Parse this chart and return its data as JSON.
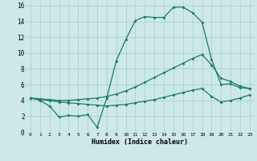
{
  "xlabel": "Humidex (Indice chaleur)",
  "background_color": "#cce8e8",
  "grid_color": "#aacccc",
  "line_color": "#1a7a6a",
  "xlim": [
    -0.5,
    23.5
  ],
  "ylim": [
    0,
    16.5
  ],
  "xticks": [
    0,
    1,
    2,
    3,
    4,
    5,
    6,
    7,
    8,
    9,
    10,
    11,
    12,
    13,
    14,
    15,
    16,
    17,
    18,
    19,
    20,
    21,
    22,
    23
  ],
  "yticks": [
    0,
    2,
    4,
    6,
    8,
    10,
    12,
    14,
    16
  ],
  "line1_x": [
    0,
    1,
    2,
    3,
    4,
    5,
    6,
    7,
    8,
    9,
    10,
    11,
    12,
    13,
    14,
    15,
    16,
    17,
    18,
    19,
    20,
    21,
    22,
    23
  ],
  "line1_y": [
    4.3,
    4.0,
    3.3,
    1.9,
    2.1,
    2.0,
    2.2,
    0.6,
    4.3,
    9.0,
    11.7,
    14.1,
    14.6,
    14.5,
    14.5,
    15.8,
    15.8,
    15.1,
    13.9,
    9.2,
    6.0,
    6.1,
    5.6,
    5.5
  ],
  "line2_x": [
    0,
    1,
    2,
    3,
    4,
    5,
    6,
    7,
    8,
    9,
    10,
    11,
    12,
    13,
    14,
    15,
    16,
    17,
    18,
    19,
    20,
    21,
    22,
    23
  ],
  "line2_y": [
    4.3,
    4.2,
    4.1,
    4.0,
    4.0,
    4.1,
    4.2,
    4.3,
    4.5,
    4.8,
    5.2,
    5.7,
    6.3,
    6.9,
    7.5,
    8.1,
    8.7,
    9.3,
    9.8,
    8.5,
    6.8,
    6.4,
    5.8,
    5.5
  ],
  "line3_x": [
    0,
    1,
    2,
    3,
    4,
    5,
    6,
    7,
    8,
    9,
    10,
    11,
    12,
    13,
    14,
    15,
    16,
    17,
    18,
    19,
    20,
    21,
    22,
    23
  ],
  "line3_y": [
    4.3,
    4.1,
    4.0,
    3.8,
    3.7,
    3.6,
    3.5,
    3.4,
    3.3,
    3.4,
    3.5,
    3.7,
    3.9,
    4.1,
    4.4,
    4.7,
    5.0,
    5.3,
    5.5,
    4.5,
    3.8,
    4.0,
    4.3,
    4.7
  ]
}
